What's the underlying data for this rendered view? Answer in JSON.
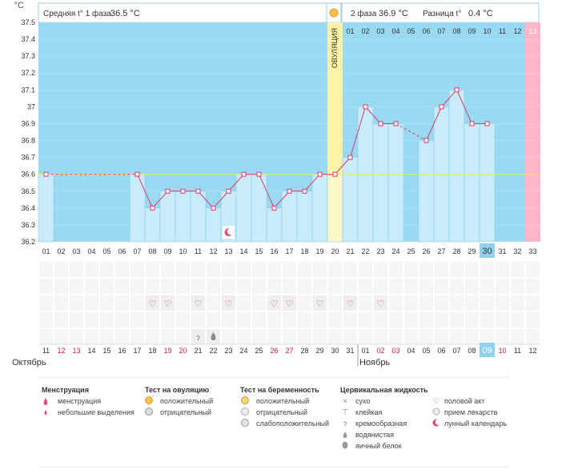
{
  "header": {
    "unit": "°C",
    "phase1_label": "Средняя t° 1 фаза",
    "phase1_value": "36.5 °C",
    "phase2_label": "2 фаза",
    "phase2_value": "36.9 °C",
    "diff_label": "Разница t°",
    "diff_value": "0.4 °C"
  },
  "ovulation_label": "ОВУЛЯЦИЯ",
  "colors": {
    "phase_bg": "#9ad9f2",
    "bar_fill": "#c8ecfb",
    "bar_stroke": "#8ccbe6",
    "ovulation": "#fdf3a6",
    "menstruation": "#ffb6c8",
    "line": "#d63a6c",
    "coverline": "#e8e86a",
    "header_bg": "#ffffff",
    "highlight": "#8fd1ee",
    "red_day": "#d6184c"
  },
  "chart_data": {
    "type": "line",
    "ylim": [
      36.2,
      37.5
    ],
    "yticks": [
      "37.5",
      "37.4",
      "37.3",
      "37.2",
      "37.1",
      "37",
      "36.9",
      "36.8",
      "36.7",
      "36.6",
      "36.5",
      "36.4",
      "36.3",
      "36.2"
    ],
    "coverline": 36.6,
    "ovulation_day": 20,
    "menstruation_day": 33,
    "highlight_day": 30,
    "highlight_date_index": 29,
    "cycle_days": [
      "01",
      "02",
      "03",
      "04",
      "05",
      "06",
      "07",
      "08",
      "09",
      "10",
      "11",
      "12",
      "13",
      "14",
      "15",
      "16",
      "17",
      "18",
      "19",
      "20",
      "21",
      "22",
      "23",
      "24",
      "25",
      "26",
      "27",
      "28",
      "29",
      "30",
      "31",
      "32",
      "33"
    ],
    "second_phase_top_labels": [
      "01",
      "02",
      "03",
      "04",
      "05",
      "06",
      "07",
      "08",
      "09",
      "10",
      "11",
      "12",
      "13"
    ],
    "dates": [
      "11",
      "12",
      "13",
      "14",
      "15",
      "16",
      "17",
      "18",
      "19",
      "20",
      "21",
      "22",
      "23",
      "24",
      "25",
      "26",
      "27",
      "28",
      "29",
      "30",
      "31",
      "01",
      "02",
      "03",
      "04",
      "05",
      "06",
      "07",
      "08",
      "09",
      "10",
      "11",
      "12"
    ],
    "red_date_indices": [
      1,
      2,
      8,
      9,
      15,
      16,
      22,
      23,
      29,
      30
    ],
    "month_left": "Октябрь",
    "month_right": "Ноябрь",
    "temperatures": [
      {
        "day": 1,
        "value": 36.6
      },
      {
        "day": 7,
        "value": 36.6
      },
      {
        "day": 8,
        "value": 36.4
      },
      {
        "day": 9,
        "value": 36.5
      },
      {
        "day": 10,
        "value": 36.5
      },
      {
        "day": 11,
        "value": 36.5
      },
      {
        "day": 12,
        "value": 36.4
      },
      {
        "day": 13,
        "value": 36.5
      },
      {
        "day": 14,
        "value": 36.6
      },
      {
        "day": 15,
        "value": 36.6
      },
      {
        "day": 16,
        "value": 36.4
      },
      {
        "day": 17,
        "value": 36.5
      },
      {
        "day": 18,
        "value": 36.5
      },
      {
        "day": 19,
        "value": 36.6
      },
      {
        "day": 20,
        "value": 36.6
      },
      {
        "day": 21,
        "value": 36.7
      },
      {
        "day": 22,
        "value": 37.0
      },
      {
        "day": 23,
        "value": 36.9
      },
      {
        "day": 24,
        "value": 36.9
      },
      {
        "day": 26,
        "value": 36.8
      },
      {
        "day": 27,
        "value": 37.0
      },
      {
        "day": 28,
        "value": 37.1
      },
      {
        "day": 29,
        "value": 36.9
      },
      {
        "day": 30,
        "value": 36.9
      }
    ],
    "dashed_segments": [
      [
        1,
        7
      ],
      [
        24,
        26
      ]
    ],
    "sex_days": [
      8,
      9,
      11,
      13,
      16,
      17,
      19,
      21,
      23
    ],
    "moon_days": [
      13
    ],
    "cervical_days": [
      {
        "day": 11,
        "icon": "cream-icon"
      },
      {
        "day": 12,
        "icon": "water-drop-icon"
      }
    ]
  },
  "legend": {
    "menstruation": {
      "title": "Менструация",
      "items": [
        "менструация",
        "небольшие выделения"
      ]
    },
    "ovulation_test": {
      "title": "Тест на овуляцию",
      "items": [
        "положительный",
        "отрицательный"
      ]
    },
    "pregnancy_test": {
      "title": "Тест на беременность",
      "items": [
        "положительный",
        "отрицательный",
        "слабоположительный"
      ]
    },
    "cervical": {
      "title": "Цервикальная жидкость",
      "items": [
        "сухо",
        "клейкая",
        "кремообразная",
        "водянистая",
        "яичный белок"
      ]
    },
    "other": {
      "items": [
        "половой акт",
        "прием лекарств",
        "лунный календарь"
      ]
    }
  }
}
